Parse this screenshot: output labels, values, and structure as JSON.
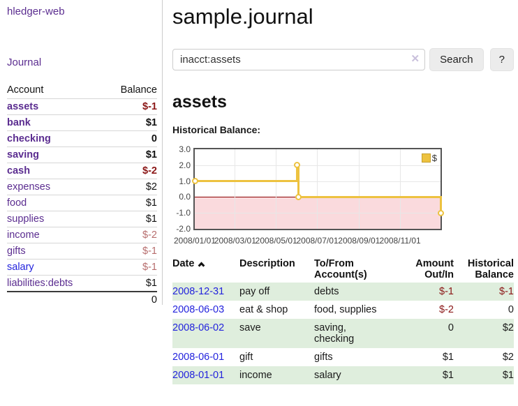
{
  "app": {
    "brand": "hledger-web",
    "nav_journal": "Journal"
  },
  "sidebar": {
    "header": {
      "account": "Account",
      "balance": "Balance"
    },
    "accounts": [
      {
        "name": "assets",
        "balance": "$-1"
      },
      {
        "name": "bank",
        "balance": "$1"
      },
      {
        "name": "checking",
        "balance": "0"
      },
      {
        "name": "saving",
        "balance": "$1"
      },
      {
        "name": "cash",
        "balance": "$-2"
      },
      {
        "name": "expenses",
        "balance": "$2"
      },
      {
        "name": "food",
        "balance": "$1"
      },
      {
        "name": "supplies",
        "balance": "$1"
      },
      {
        "name": "income",
        "balance": "$-2"
      },
      {
        "name": "gifts",
        "balance": "$-1"
      },
      {
        "name": "salary",
        "balance": "$-1"
      },
      {
        "name": "liabilities:debts",
        "balance": "$1"
      }
    ],
    "total": "0"
  },
  "main": {
    "title": "sample.journal",
    "search": {
      "value": "inacct:assets",
      "clear": "✕",
      "button": "Search",
      "help": "?"
    },
    "heading": "assets",
    "chart_label": "Historical Balance:",
    "table": {
      "headers": {
        "date": "Date",
        "description": "Description",
        "accounts": "To/From Account(s)",
        "amount": "Amount Out/In",
        "balance": "Historical Balance"
      },
      "rows": [
        {
          "date": "2008-12-31",
          "description": "pay off",
          "accounts": "debts",
          "amount": "$-1",
          "balance": "$-1"
        },
        {
          "date": "2008-06-03",
          "description": "eat & shop",
          "accounts": "food, supplies",
          "amount": "$-2",
          "balance": "0"
        },
        {
          "date": "2008-06-02",
          "description": "save",
          "accounts": "saving,\nchecking",
          "amount": "0",
          "balance": "$2"
        },
        {
          "date": "2008-06-01",
          "description": "gift",
          "accounts": "gifts",
          "amount": "$1",
          "balance": "$2"
        },
        {
          "date": "2008-01-01",
          "description": "income",
          "accounts": "salary",
          "amount": "$1",
          "balance": "$1"
        }
      ]
    }
  },
  "chart_data": {
    "type": "line",
    "step": true,
    "title": "Historical Balance:",
    "series": [
      {
        "name": "$",
        "color": "#edc240",
        "points": [
          [
            "2008-01-01",
            1
          ],
          [
            "2008-06-01",
            2
          ],
          [
            "2008-06-03",
            0
          ],
          [
            "2008-12-31",
            -1
          ]
        ]
      }
    ],
    "xrange": [
      "2008-01-01",
      "2008-12-31"
    ],
    "ylim": [
      -2,
      3
    ],
    "yticks": [
      "3.0",
      "2.0",
      "1.0",
      "0.0",
      "-1.0",
      "-2.0"
    ],
    "xticks": [
      "2008/01/01",
      "2008/03/01",
      "2008/05/01",
      "2008/07/01",
      "2008/09/01",
      "2008/11/01"
    ],
    "legend_position": "top-right",
    "grid": true,
    "negative_fill": "#fadadd",
    "zero_line_color": "#8b0000"
  },
  "colors": {
    "account_link": "#5b2d90",
    "date_link": "#2323dd",
    "negative_strong": "#8b1717",
    "negative_soft": "#b76e6e",
    "stripe_green": "#dfeedd",
    "series_yellow": "#edc240",
    "chart_border": "#545454"
  }
}
